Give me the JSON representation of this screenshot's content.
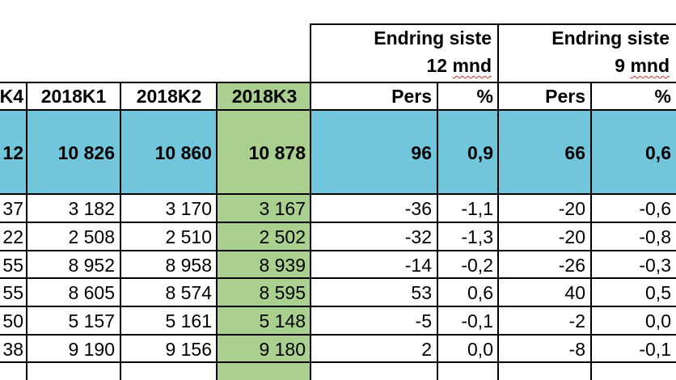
{
  "group_headers": [
    {
      "line1": "Endring siste",
      "line2_num": "12",
      "line2_unit": "mnd"
    },
    {
      "line1": "Endring siste",
      "line2_num": "9",
      "line2_unit": "mnd"
    }
  ],
  "column_headers": [
    "K4",
    "2018K1",
    "2018K2",
    "2018K3",
    "Pers",
    "%",
    "Pers",
    "%"
  ],
  "rows": [
    {
      "values": [
        "12",
        "10 826",
        "10 860",
        "10 878",
        "96",
        "0,9",
        "66",
        "0,6"
      ],
      "style": "total"
    },
    {
      "values": [
        "37",
        "3 182",
        "3 170",
        "3 167",
        "-36",
        "-1,1",
        "-20",
        "-0,6"
      ],
      "style": "normal"
    },
    {
      "values": [
        "22",
        "2 508",
        "2 510",
        "2 502",
        "-32",
        "-1,3",
        "-20",
        "-0,8"
      ],
      "style": "normal"
    },
    {
      "values": [
        "55",
        "8 952",
        "8 958",
        "8 939",
        "-14",
        "-0,2",
        "-26",
        "-0,3"
      ],
      "style": "normal"
    },
    {
      "values": [
        "55",
        "8 605",
        "8 574",
        "8 595",
        "53",
        "0,6",
        "40",
        "0,5"
      ],
      "style": "normal"
    },
    {
      "values": [
        "50",
        "5 157",
        "5 161",
        "5 148",
        "-5",
        "-0,1",
        "-2",
        "0,0"
      ],
      "style": "normal"
    },
    {
      "values": [
        "38",
        "9 190",
        "9 156",
        "9 180",
        "2",
        "0,0",
        "-8",
        "-0,1"
      ],
      "style": "normal"
    }
  ],
  "colors": {
    "total_row_fill": "#72c6dc",
    "highlight_column_fill": "#a9d08e",
    "spellcheck_underline": "#d32f2f"
  }
}
